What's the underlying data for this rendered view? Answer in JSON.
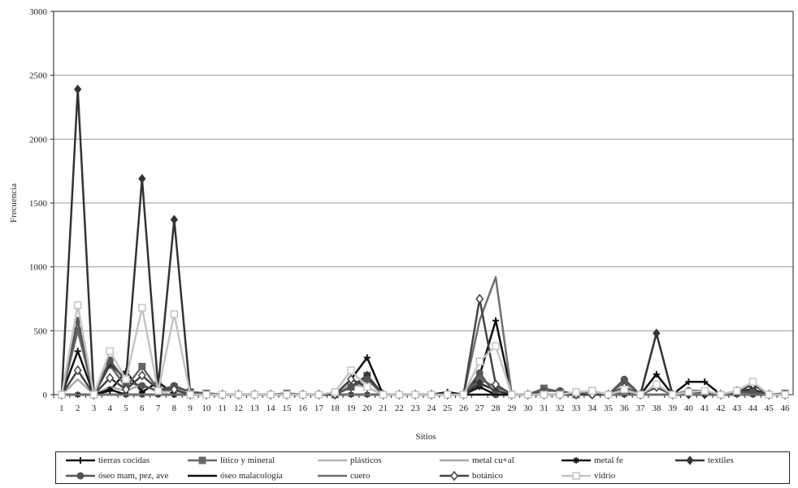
{
  "chart_data": {
    "type": "line",
    "title": "",
    "xlabel": "Sitios",
    "ylabel": "Frecuencia",
    "ylim": [
      0,
      3000
    ],
    "yticks": [
      0,
      500,
      1000,
      1500,
      2000,
      2500,
      3000
    ],
    "grid": true,
    "legend_position": "bottom",
    "categories": [
      "1",
      "2",
      "3",
      "4",
      "5",
      "6",
      "7",
      "8",
      "9",
      "10",
      "11",
      "12",
      "13",
      "14",
      "15",
      "16",
      "17",
      "18",
      "19",
      "20",
      "21",
      "22",
      "23",
      "24",
      "25",
      "26",
      "27",
      "28",
      "29",
      "30",
      "31",
      "32",
      "33",
      "34",
      "35",
      "36",
      "37",
      "38",
      "39",
      "40",
      "41",
      "42",
      "43",
      "44",
      "45",
      "46"
    ],
    "series": [
      {
        "name": "tierras cocidas",
        "color": "#111111",
        "marker": "plus",
        "values": [
          0,
          340,
          0,
          30,
          180,
          20,
          100,
          0,
          0,
          0,
          0,
          0,
          0,
          0,
          0,
          0,
          0,
          0,
          120,
          290,
          0,
          0,
          0,
          0,
          20,
          0,
          150,
          580,
          0,
          0,
          0,
          0,
          0,
          0,
          0,
          20,
          0,
          160,
          0,
          100,
          100,
          0,
          20,
          40,
          0,
          0
        ]
      },
      {
        "name": "lítico y mineral",
        "color": "#666666",
        "marker": "square",
        "values": [
          0,
          500,
          0,
          230,
          60,
          220,
          40,
          60,
          20,
          10,
          0,
          0,
          0,
          0,
          10,
          0,
          0,
          0,
          60,
          150,
          0,
          0,
          0,
          0,
          0,
          0,
          120,
          60,
          0,
          0,
          50,
          20,
          0,
          30,
          0,
          100,
          0,
          80,
          0,
          20,
          20,
          0,
          20,
          40,
          0,
          10
        ]
      },
      {
        "name": "plásticos",
        "color": "#b5b5b5",
        "marker": "none",
        "values": [
          0,
          0,
          0,
          0,
          0,
          0,
          0,
          0,
          0,
          0,
          0,
          0,
          0,
          0,
          0,
          0,
          0,
          0,
          0,
          0,
          0,
          0,
          0,
          0,
          0,
          0,
          0,
          0,
          0,
          0,
          0,
          0,
          0,
          0,
          0,
          0,
          0,
          0,
          0,
          0,
          0,
          0,
          0,
          0,
          0,
          0
        ]
      },
      {
        "name": "metal cu+al",
        "color": "#a8a8a8",
        "marker": "none",
        "values": [
          0,
          120,
          0,
          60,
          30,
          80,
          20,
          30,
          0,
          0,
          0,
          0,
          0,
          0,
          0,
          0,
          0,
          0,
          80,
          60,
          0,
          0,
          0,
          0,
          0,
          0,
          80,
          40,
          0,
          0,
          0,
          0,
          0,
          0,
          0,
          30,
          0,
          60,
          0,
          0,
          0,
          0,
          0,
          20,
          0,
          0
        ]
      },
      {
        "name": "metal fe",
        "color": "#111111",
        "marker": "star",
        "values": [
          0,
          0,
          0,
          40,
          0,
          0,
          0,
          0,
          0,
          0,
          0,
          0,
          0,
          0,
          0,
          0,
          0,
          0,
          0,
          0,
          0,
          0,
          0,
          0,
          0,
          0,
          60,
          0,
          0,
          0,
          0,
          0,
          0,
          0,
          0,
          0,
          0,
          60,
          0,
          0,
          0,
          0,
          0,
          0,
          0,
          0
        ]
      },
      {
        "name": "textiles",
        "color": "#333333",
        "marker": "diamond",
        "values": [
          0,
          2390,
          0,
          240,
          120,
          1690,
          60,
          1370,
          0,
          0,
          0,
          0,
          0,
          0,
          0,
          0,
          0,
          0,
          60,
          150,
          0,
          0,
          0,
          0,
          0,
          0,
          90,
          30,
          0,
          0,
          0,
          0,
          0,
          0,
          0,
          40,
          0,
          480,
          0,
          0,
          0,
          0,
          30,
          40,
          0,
          0
        ]
      },
      {
        "name": "óseo mam, pez, ave",
        "color": "#555555",
        "marker": "circle",
        "values": [
          0,
          580,
          0,
          270,
          100,
          70,
          30,
          70,
          20,
          10,
          0,
          0,
          0,
          0,
          0,
          0,
          0,
          0,
          60,
          120,
          0,
          0,
          0,
          0,
          0,
          0,
          170,
          0,
          0,
          0,
          30,
          30,
          0,
          0,
          0,
          120,
          0,
          60,
          0,
          30,
          30,
          0,
          20,
          20,
          0,
          0
        ]
      },
      {
        "name": "óseo malacología",
        "color": "#111111",
        "marker": "none",
        "values": [
          0,
          0,
          0,
          0,
          0,
          0,
          0,
          0,
          0,
          0,
          0,
          0,
          0,
          0,
          0,
          0,
          0,
          0,
          0,
          0,
          0,
          0,
          0,
          0,
          0,
          0,
          0,
          0,
          0,
          0,
          0,
          0,
          0,
          0,
          0,
          0,
          0,
          0,
          0,
          0,
          0,
          0,
          0,
          0,
          0,
          0
        ]
      },
      {
        "name": "cuero",
        "color": "#707070",
        "marker": "none",
        "values": [
          0,
          0,
          0,
          0,
          0,
          0,
          0,
          0,
          0,
          0,
          0,
          0,
          0,
          0,
          0,
          0,
          0,
          0,
          0,
          0,
          0,
          0,
          0,
          0,
          0,
          0,
          580,
          920,
          0,
          0,
          0,
          0,
          0,
          0,
          0,
          0,
          0,
          0,
          0,
          0,
          0,
          0,
          0,
          0,
          0,
          0
        ]
      },
      {
        "name": "botánico",
        "color": "#444444",
        "marker": "hollow-diamond",
        "values": [
          0,
          190,
          0,
          130,
          40,
          150,
          40,
          40,
          0,
          0,
          0,
          0,
          0,
          0,
          0,
          0,
          0,
          0,
          120,
          60,
          0,
          0,
          0,
          0,
          0,
          0,
          750,
          80,
          0,
          0,
          0,
          0,
          0,
          0,
          0,
          60,
          0,
          60,
          0,
          20,
          20,
          0,
          20,
          80,
          0,
          0
        ]
      },
      {
        "name": "vidrio",
        "color": "#c4c4c4",
        "marker": "hollow-square",
        "values": [
          0,
          700,
          0,
          340,
          120,
          680,
          30,
          630,
          0,
          0,
          0,
          0,
          0,
          0,
          0,
          0,
          0,
          20,
          190,
          60,
          0,
          0,
          0,
          0,
          0,
          0,
          260,
          380,
          0,
          0,
          0,
          0,
          20,
          30,
          0,
          40,
          0,
          80,
          0,
          20,
          30,
          0,
          30,
          100,
          0,
          0
        ]
      }
    ]
  }
}
